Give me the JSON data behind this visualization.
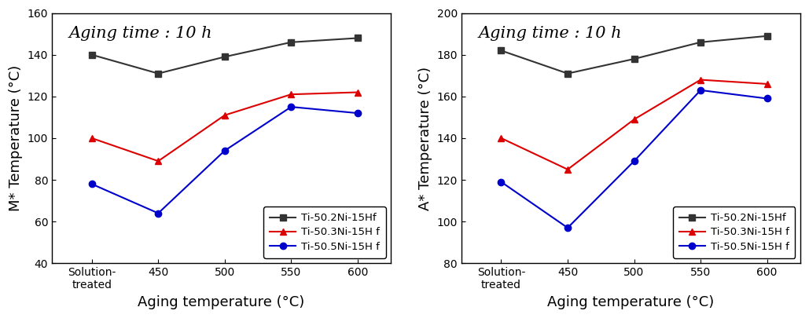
{
  "left_plot": {
    "title": "Aging time : 10 h",
    "xlabel": "Aging temperature (°C)",
    "ylabel": "M* Temperature (°C)",
    "ylim": [
      40,
      160
    ],
    "yticks": [
      40,
      60,
      80,
      100,
      120,
      140,
      160
    ],
    "x_labels": [
      "Solution-\ntreated",
      "450",
      "500",
      "550",
      "600"
    ],
    "legend_labels": [
      "Ti-50.2Ni-15Hf",
      "Ti-50.3Ni-15H f",
      "Ti-50.5Ni-15H f"
    ],
    "series": [
      {
        "label": "Ti-50.2Ni-15Hf",
        "color": "#333333",
        "marker": "s",
        "values": [
          140,
          131,
          139,
          146,
          148
        ]
      },
      {
        "label": "Ti-50.3Ni-15H f",
        "color": "#dd0000",
        "marker": "^",
        "values": [
          100,
          89,
          111,
          121,
          122
        ]
      },
      {
        "label": "Ti-50.5Ni-15H f",
        "color": "#0000cc",
        "marker": "o",
        "values": [
          78,
          64,
          94,
          115,
          112
        ]
      }
    ]
  },
  "right_plot": {
    "title": "Aging time : 10 h",
    "xlabel": "Aging temperature (°C)",
    "ylabel": "A* Temperature (°C)",
    "ylim": [
      80,
      200
    ],
    "yticks": [
      80,
      100,
      120,
      140,
      160,
      180,
      200
    ],
    "x_labels": [
      "Solution-\ntreated",
      "450",
      "500",
      "550",
      "600"
    ],
    "legend_labels": [
      "Ti-50.2Ni-15Hf",
      "Ti-50.3Ni-15H f",
      "Ti-50.5Ni-15H f"
    ],
    "series": [
      {
        "label": "Ti-50.2Ni-15Hf",
        "color": "#333333",
        "marker": "s",
        "values": [
          182,
          171,
          178,
          186,
          189
        ]
      },
      {
        "label": "Ti-50.3Ni-15H f",
        "color": "#dd0000",
        "marker": "^",
        "values": [
          140,
          125,
          149,
          168,
          166
        ]
      },
      {
        "label": "Ti-50.5Ni-15H f",
        "color": "#0000cc",
        "marker": "o",
        "values": [
          119,
          97,
          129,
          163,
          159
        ]
      }
    ]
  },
  "background_color": "#ffffff",
  "title_fontsize": 15,
  "axis_label_fontsize": 13,
  "tick_fontsize": 10,
  "legend_fontsize": 9.5,
  "markersize": 6,
  "linewidth": 1.5
}
